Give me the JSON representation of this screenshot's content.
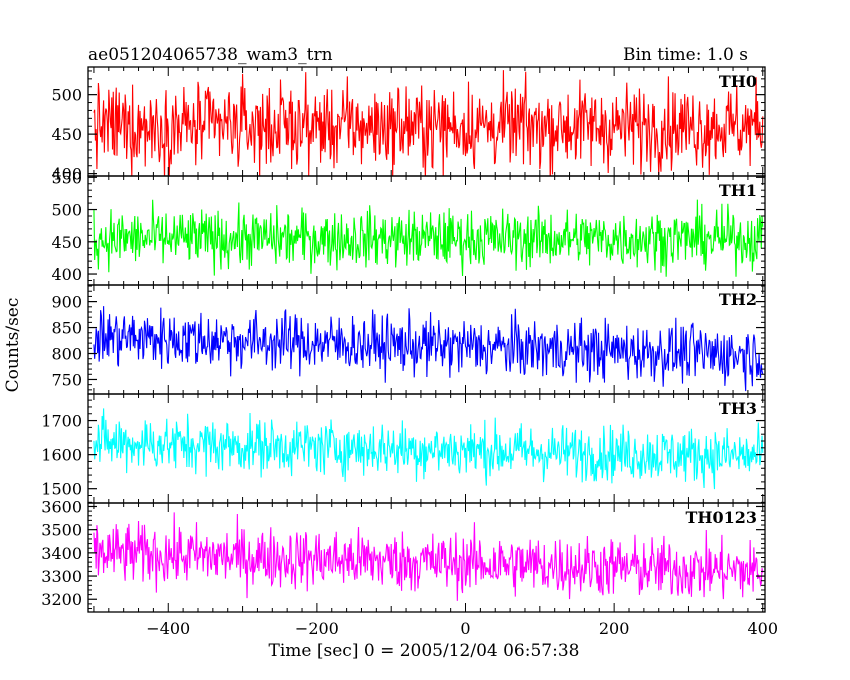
{
  "header": {
    "left_title": "ae051204065738_wam3_trn",
    "right_title": "Bin time: 1.0 s"
  },
  "axes": {
    "ylabel": "Counts/sec",
    "xlabel": "Time [sec] 0 = 2005/12/04 06:57:38"
  },
  "chart_data": {
    "type": "line",
    "x_range": [
      -508,
      403
    ],
    "x_ticks": [
      -400,
      -200,
      0,
      200,
      400
    ],
    "x_tick_labels": [
      "−400",
      "−200",
      "0",
      "200",
      "400"
    ],
    "x_sampling": {
      "start": -500,
      "end": 400,
      "step": 1.0
    },
    "grid": false,
    "panels": [
      {
        "name": "TH0",
        "color": "#ff0000",
        "ylim": [
          397,
          535
        ],
        "y_ticks": [
          400,
          450,
          500
        ],
        "mean": 460,
        "noise": 26,
        "trend": 0
      },
      {
        "name": "TH1",
        "color": "#00ff00",
        "ylim": [
          383,
          552
        ],
        "y_ticks": [
          400,
          450,
          500,
          550
        ],
        "mean": 455,
        "noise": 22,
        "trend": 0
      },
      {
        "name": "TH2",
        "color": "#0000ff",
        "ylim": [
          722,
          932
        ],
        "y_ticks": [
          750,
          800,
          850,
          900
        ],
        "mean": 815,
        "noise": 28,
        "trend": -35
      },
      {
        "name": "TH3",
        "color": "#00ffff",
        "ylim": [
          1458,
          1778
        ],
        "y_ticks": [
          1500,
          1600,
          1700
        ],
        "mean": 1615,
        "noise": 40,
        "trend": -40
      },
      {
        "name": "TH0123",
        "color": "#ff00ff",
        "ylim": [
          3145,
          3615
        ],
        "y_ticks": [
          3200,
          3300,
          3400,
          3500,
          3600
        ],
        "mean": 3360,
        "noise": 65,
        "trend": -80
      }
    ]
  }
}
